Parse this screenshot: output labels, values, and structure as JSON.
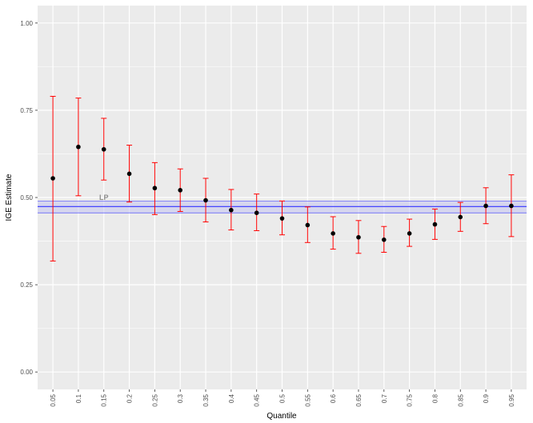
{
  "chart_data": {
    "type": "scatter",
    "title": "",
    "xlabel": "Quantile",
    "ylabel": "IGE Estimate",
    "categories": [
      "0.05",
      "0.1",
      "0.15",
      "0.2",
      "0.25",
      "0.3",
      "0.35",
      "0.4",
      "0.45",
      "0.5",
      "0.55",
      "0.6",
      "0.65",
      "0.7",
      "0.75",
      "0.8",
      "0.85",
      "0.9",
      "0.95"
    ],
    "series": [
      {
        "values": [
          0.555,
          0.645,
          0.638,
          0.568,
          0.527,
          0.521,
          0.492,
          0.464,
          0.456,
          0.44,
          0.421,
          0.397,
          0.386,
          0.379,
          0.397,
          0.423,
          0.444,
          0.476,
          0.476
        ],
        "lower": [
          0.318,
          0.505,
          0.55,
          0.487,
          0.451,
          0.46,
          0.43,
          0.407,
          0.405,
          0.393,
          0.371,
          0.352,
          0.34,
          0.343,
          0.36,
          0.38,
          0.403,
          0.425,
          0.388
        ],
        "upper": [
          0.79,
          0.785,
          0.727,
          0.65,
          0.6,
          0.582,
          0.555,
          0.523,
          0.51,
          0.49,
          0.473,
          0.445,
          0.434,
          0.417,
          0.438,
          0.467,
          0.486,
          0.528,
          0.565
        ]
      }
    ],
    "reference": {
      "label": "LP",
      "value": 0.474,
      "band": [
        0.456,
        0.49
      ]
    },
    "yticks": [
      "0.00",
      "0.25",
      "0.50",
      "0.75",
      "1.00"
    ],
    "ylim": [
      -0.05,
      1.05
    ],
    "grid": true,
    "colors": {
      "panel": "#ebebeb",
      "grid": "#ffffff",
      "point": "#000000",
      "errorbar": "#ff0000",
      "reference_line": "#3333ff",
      "reference_band": "#c5c5f0"
    }
  }
}
